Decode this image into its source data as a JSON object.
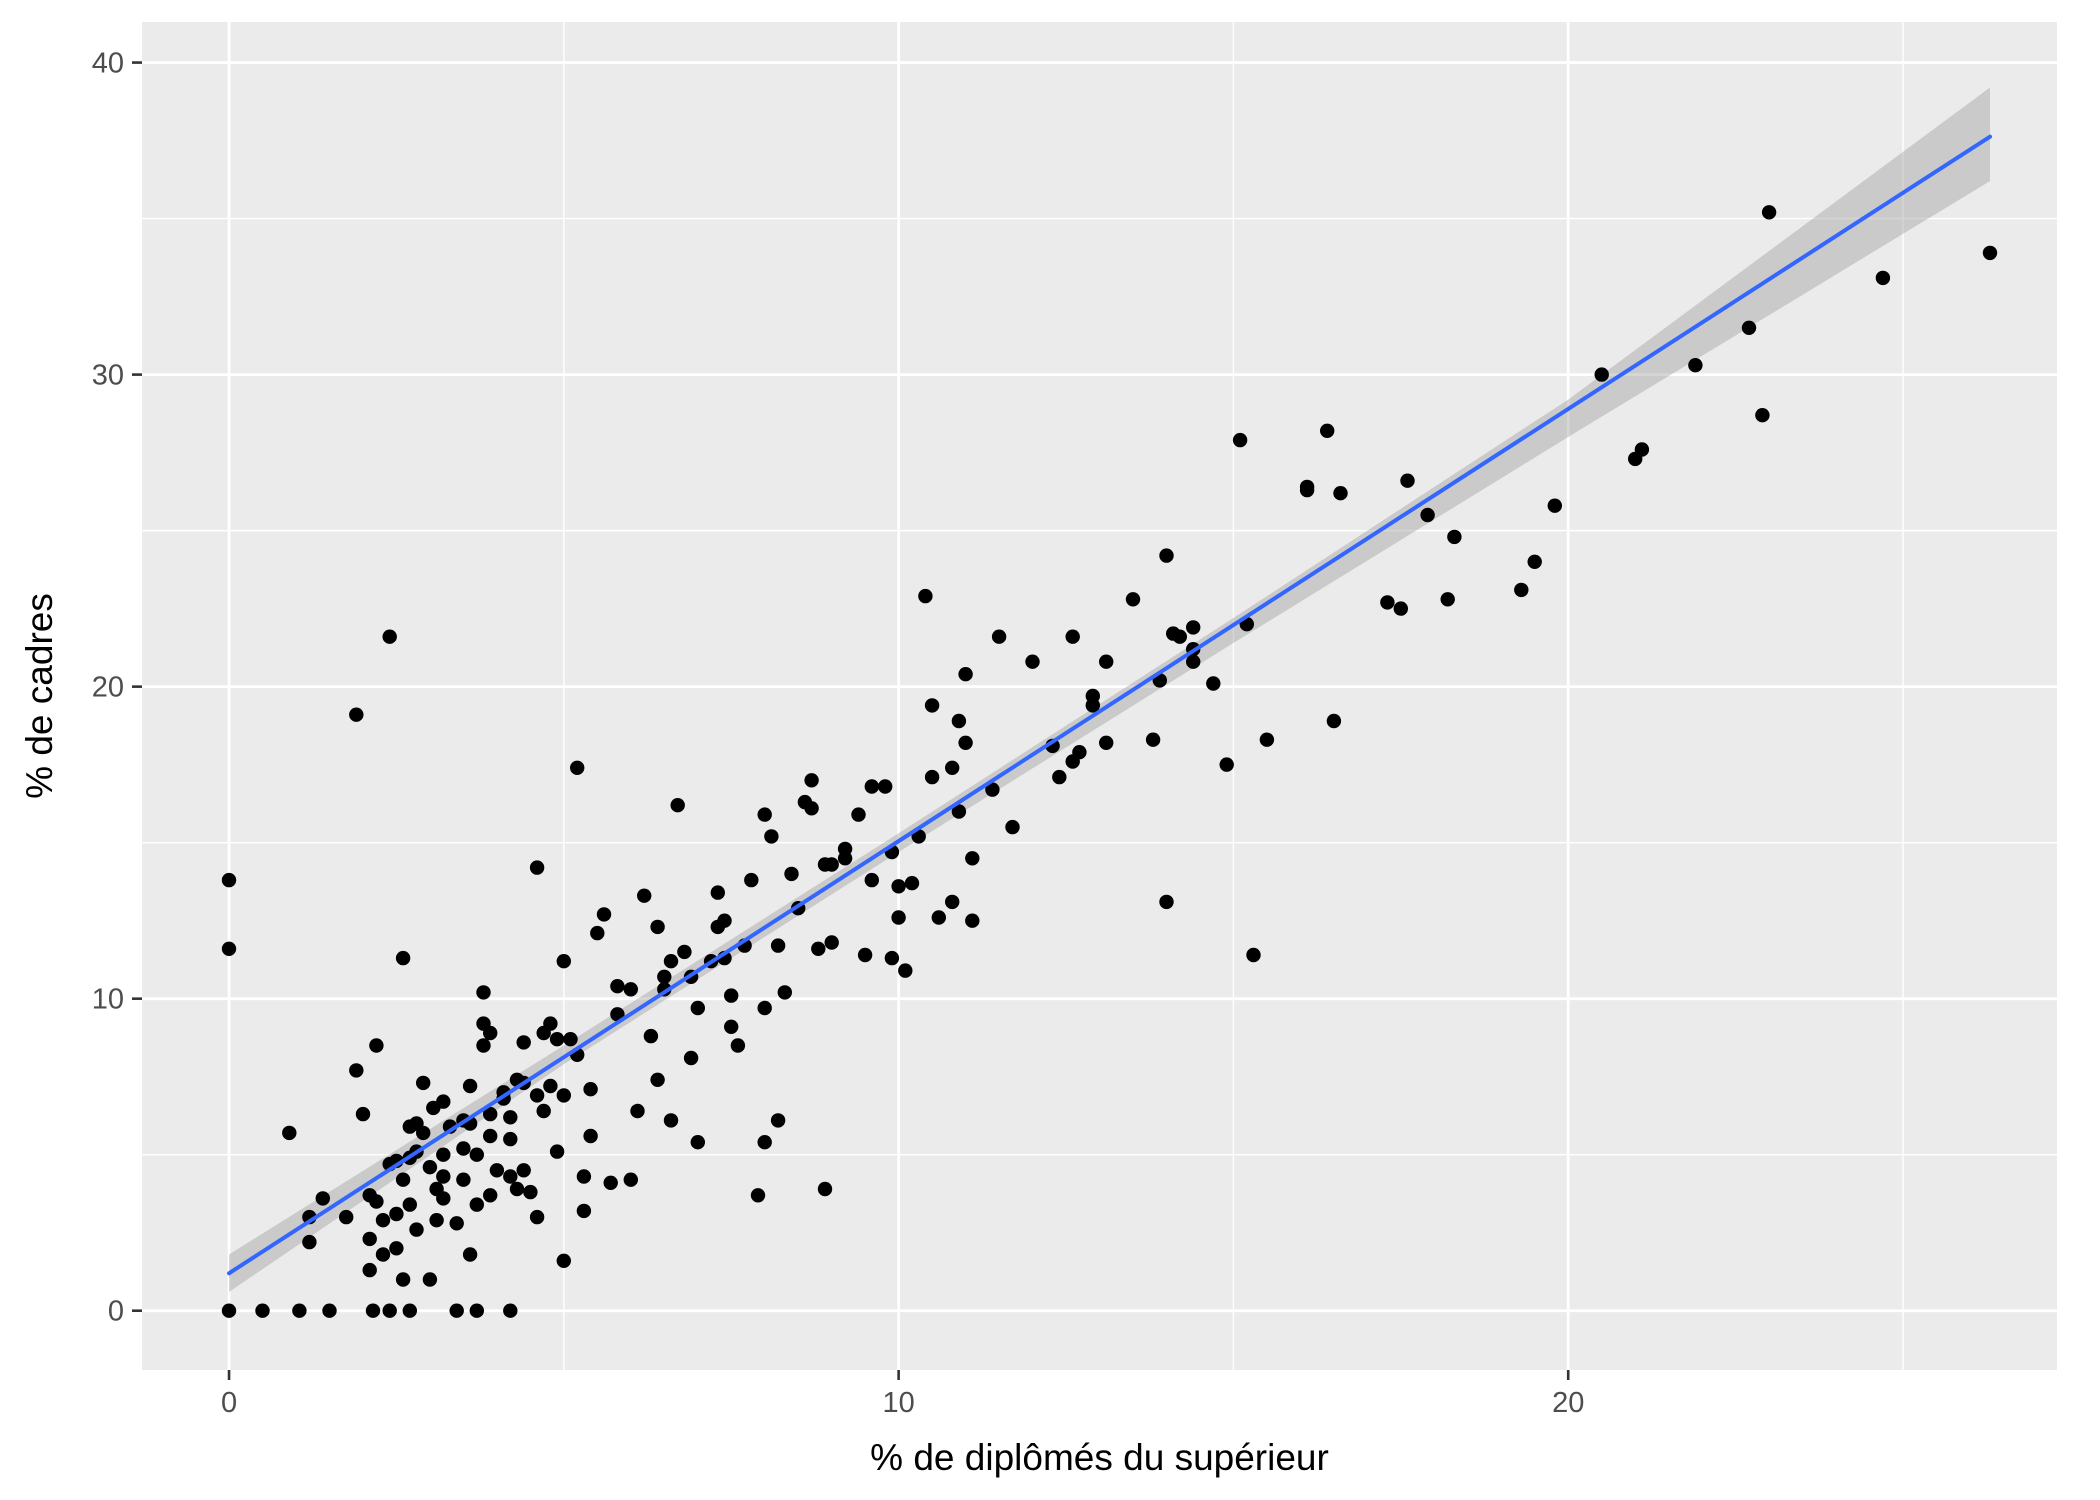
{
  "chart_data": {
    "type": "scatter",
    "xlabel": "% de diplômés du supérieur",
    "ylabel": "% de cadres",
    "xlim": [
      -1.3,
      27.3
    ],
    "ylim": [
      -1.9,
      41.3
    ],
    "x_ticks": [
      0,
      10,
      20
    ],
    "y_ticks": [
      0,
      10,
      20,
      30,
      40
    ],
    "x_tick_labels": [
      "0",
      "10",
      "20"
    ],
    "y_tick_labels": [
      "0",
      "10",
      "20",
      "30",
      "40"
    ],
    "grid": true,
    "legend": "none",
    "colors": {
      "panel": "#ebebeb",
      "grid": "#ffffff",
      "points": "#000000",
      "fit_line": "#3366ff",
      "confidence_band": "#999999",
      "tick_label": "#4d4d4d",
      "axis_title": "#000000"
    },
    "fit": {
      "method": "linear",
      "x_range": [
        0,
        26.3
      ],
      "intercept": 1.2,
      "slope": 1.385,
      "band": [
        {
          "x": 0,
          "lower": 0.6,
          "upper": 1.8
        },
        {
          "x": 5,
          "lower": 7.9,
          "upper": 8.5
        },
        {
          "x": 10,
          "lower": 14.7,
          "upper": 15.3
        },
        {
          "x": 15,
          "lower": 21.4,
          "upper": 22.2
        },
        {
          "x": 20,
          "lower": 28.0,
          "upper": 29.2
        },
        {
          "x": 26.3,
          "lower": 36.2,
          "upper": 39.2
        }
      ]
    },
    "points": [
      [
        0,
        0
      ],
      [
        0,
        11.6
      ],
      [
        0,
        13.8
      ],
      [
        0.5,
        0
      ],
      [
        0.9,
        5.7
      ],
      [
        1.05,
        0
      ],
      [
        1.2,
        2.2
      ],
      [
        1.2,
        3
      ],
      [
        1.4,
        3.6
      ],
      [
        1.5,
        0
      ],
      [
        1.75,
        3.0
      ],
      [
        1.9,
        7.7
      ],
      [
        1.9,
        19.1
      ],
      [
        2.0,
        6.3
      ],
      [
        2.1,
        3.7
      ],
      [
        2.1,
        2.3
      ],
      [
        2.1,
        1.3
      ],
      [
        2.15,
        0
      ],
      [
        2.2,
        3.5
      ],
      [
        2.2,
        8.5
      ],
      [
        2.3,
        2.9
      ],
      [
        2.3,
        1.8
      ],
      [
        2.4,
        21.6
      ],
      [
        2.4,
        0
      ],
      [
        2.4,
        4.7
      ],
      [
        2.5,
        2.0
      ],
      [
        2.5,
        3.1
      ],
      [
        2.5,
        4.8
      ],
      [
        2.6,
        1.0
      ],
      [
        2.6,
        11.3
      ],
      [
        2.6,
        4.2
      ],
      [
        2.7,
        4.9
      ],
      [
        2.7,
        3.4
      ],
      [
        2.7,
        5.9
      ],
      [
        2.7,
        0
      ],
      [
        2.8,
        5.1
      ],
      [
        2.8,
        6.0
      ],
      [
        2.8,
        2.6
      ],
      [
        2.9,
        7.3
      ],
      [
        2.9,
        5.7
      ],
      [
        3.0,
        4.6
      ],
      [
        3.0,
        1.0
      ],
      [
        3.05,
        6.5
      ],
      [
        3.1,
        2.9
      ],
      [
        3.1,
        3.9
      ],
      [
        3.2,
        6.7
      ],
      [
        3.2,
        5.0
      ],
      [
        3.2,
        4.3
      ],
      [
        3.2,
        3.6
      ],
      [
        3.3,
        5.9
      ],
      [
        3.4,
        2.8
      ],
      [
        3.4,
        0
      ],
      [
        3.5,
        5.2
      ],
      [
        3.5,
        4.2
      ],
      [
        3.5,
        6.1
      ],
      [
        3.6,
        6.0
      ],
      [
        3.6,
        1.8
      ],
      [
        3.6,
        7.2
      ],
      [
        3.7,
        5.0
      ],
      [
        3.7,
        3.4
      ],
      [
        3.7,
        0
      ],
      [
        3.8,
        8.5
      ],
      [
        3.8,
        9.2
      ],
      [
        3.8,
        10.2
      ],
      [
        3.9,
        6.3
      ],
      [
        3.9,
        3.7
      ],
      [
        3.9,
        8.9
      ],
      [
        3.9,
        5.6
      ],
      [
        4.0,
        4.5
      ],
      [
        4.1,
        6.8
      ],
      [
        4.1,
        7.0
      ],
      [
        4.2,
        5.5
      ],
      [
        4.2,
        4.3
      ],
      [
        4.2,
        6.2
      ],
      [
        4.2,
        0
      ],
      [
        4.3,
        7.4
      ],
      [
        4.3,
        3.9
      ],
      [
        4.4,
        4.5
      ],
      [
        4.4,
        7.3
      ],
      [
        4.4,
        8.6
      ],
      [
        4.5,
        3.8
      ],
      [
        4.6,
        6.9
      ],
      [
        4.6,
        3.0
      ],
      [
        4.6,
        14.2
      ],
      [
        4.7,
        8.9
      ],
      [
        4.7,
        6.4
      ],
      [
        4.8,
        9.2
      ],
      [
        4.8,
        7.2
      ],
      [
        4.9,
        5.1
      ],
      [
        4.9,
        8.7
      ],
      [
        5.0,
        1.6
      ],
      [
        5.0,
        11.2
      ],
      [
        5.0,
        6.9
      ],
      [
        5.1,
        8.7
      ],
      [
        5.2,
        8.2
      ],
      [
        5.2,
        17.4
      ],
      [
        5.3,
        3.2
      ],
      [
        5.3,
        4.3
      ],
      [
        5.4,
        5.6
      ],
      [
        5.4,
        7.1
      ],
      [
        5.5,
        12.1
      ],
      [
        5.6,
        12.7
      ],
      [
        5.7,
        4.1
      ],
      [
        5.8,
        10.4
      ],
      [
        5.8,
        9.5
      ],
      [
        6.0,
        10.3
      ],
      [
        6.0,
        4.2
      ],
      [
        6.1,
        6.4
      ],
      [
        6.2,
        13.3
      ],
      [
        6.3,
        8.8
      ],
      [
        6.4,
        7.4
      ],
      [
        6.4,
        12.3
      ],
      [
        6.5,
        10.7
      ],
      [
        6.5,
        10.3
      ],
      [
        6.6,
        11.2
      ],
      [
        6.6,
        6.1
      ],
      [
        6.7,
        16.2
      ],
      [
        6.8,
        11.5
      ],
      [
        6.9,
        10.7
      ],
      [
        6.9,
        8.1
      ],
      [
        7.0,
        9.7
      ],
      [
        7.0,
        5.4
      ],
      [
        7.2,
        11.2
      ],
      [
        7.3,
        12.3
      ],
      [
        7.3,
        13.4
      ],
      [
        7.4,
        12.5
      ],
      [
        7.4,
        11.3
      ],
      [
        7.5,
        10.1
      ],
      [
        7.5,
        9.1
      ],
      [
        7.6,
        8.5
      ],
      [
        7.7,
        11.7
      ],
      [
        7.8,
        13.8
      ],
      [
        7.9,
        3.7
      ],
      [
        8.0,
        15.9
      ],
      [
        8.0,
        5.4
      ],
      [
        8.0,
        9.7
      ],
      [
        8.1,
        15.2
      ],
      [
        8.2,
        11.7
      ],
      [
        8.2,
        6.1
      ],
      [
        8.3,
        10.2
      ],
      [
        8.4,
        14.0
      ],
      [
        8.5,
        12.9
      ],
      [
        8.6,
        16.3
      ],
      [
        8.7,
        16.1
      ],
      [
        8.7,
        17.0
      ],
      [
        8.8,
        11.6
      ],
      [
        8.9,
        14.3
      ],
      [
        8.9,
        3.9
      ],
      [
        9.0,
        14.3
      ],
      [
        9.0,
        11.8
      ],
      [
        9.2,
        14.8
      ],
      [
        9.2,
        14.5
      ],
      [
        9.4,
        15.9
      ],
      [
        9.5,
        11.4
      ],
      [
        9.6,
        13.8
      ],
      [
        9.6,
        16.8
      ],
      [
        9.8,
        16.8
      ],
      [
        9.9,
        14.7
      ],
      [
        9.9,
        11.3
      ],
      [
        10.0,
        13.6
      ],
      [
        10.0,
        12.6
      ],
      [
        10.1,
        10.9
      ],
      [
        10.2,
        13.7
      ],
      [
        10.3,
        15.2
      ],
      [
        10.4,
        22.9
      ],
      [
        10.5,
        19.4
      ],
      [
        10.5,
        17.1
      ],
      [
        10.6,
        12.6
      ],
      [
        10.8,
        13.1
      ],
      [
        10.8,
        17.4
      ],
      [
        10.9,
        18.9
      ],
      [
        10.9,
        16.0
      ],
      [
        11.0,
        20.4
      ],
      [
        11.0,
        18.2
      ],
      [
        11.1,
        12.5
      ],
      [
        11.1,
        14.5
      ],
      [
        11.4,
        16.7
      ],
      [
        11.5,
        21.6
      ],
      [
        11.7,
        15.5
      ],
      [
        12.0,
        20.8
      ],
      [
        12.3,
        18.1
      ],
      [
        12.4,
        17.1
      ],
      [
        12.6,
        21.6
      ],
      [
        12.6,
        17.6
      ],
      [
        12.7,
        17.9
      ],
      [
        12.9,
        19.7
      ],
      [
        12.9,
        19.4
      ],
      [
        13.1,
        18.2
      ],
      [
        13.1,
        20.8
      ],
      [
        13.5,
        22.8
      ],
      [
        13.8,
        18.3
      ],
      [
        13.9,
        20.2
      ],
      [
        14.0,
        24.2
      ],
      [
        14.0,
        13.1
      ],
      [
        14.1,
        21.7
      ],
      [
        14.2,
        21.6
      ],
      [
        14.4,
        20.8
      ],
      [
        14.4,
        21.2
      ],
      [
        14.4,
        21.9
      ],
      [
        14.7,
        20.1
      ],
      [
        14.9,
        17.5
      ],
      [
        15.1,
        27.9
      ],
      [
        15.2,
        22.0
      ],
      [
        15.3,
        11.4
      ],
      [
        15.5,
        18.3
      ],
      [
        16.1,
        26.3
      ],
      [
        16.1,
        26.4
      ],
      [
        16.4,
        28.2
      ],
      [
        16.5,
        18.9
      ],
      [
        16.6,
        26.2
      ],
      [
        17.3,
        22.7
      ],
      [
        17.5,
        22.5
      ],
      [
        17.6,
        26.6
      ],
      [
        17.9,
        25.5
      ],
      [
        18.2,
        22.8
      ],
      [
        18.3,
        24.8
      ],
      [
        19.3,
        23.1
      ],
      [
        19.5,
        24.0
      ],
      [
        19.8,
        25.8
      ],
      [
        20.5,
        30.0
      ],
      [
        21.0,
        27.3
      ],
      [
        21.1,
        27.6
      ],
      [
        21.9,
        30.3
      ],
      [
        22.7,
        31.5
      ],
      [
        22.9,
        28.7
      ],
      [
        23.0,
        35.2
      ],
      [
        24.7,
        33.1
      ],
      [
        26.3,
        33.9
      ]
    ]
  }
}
